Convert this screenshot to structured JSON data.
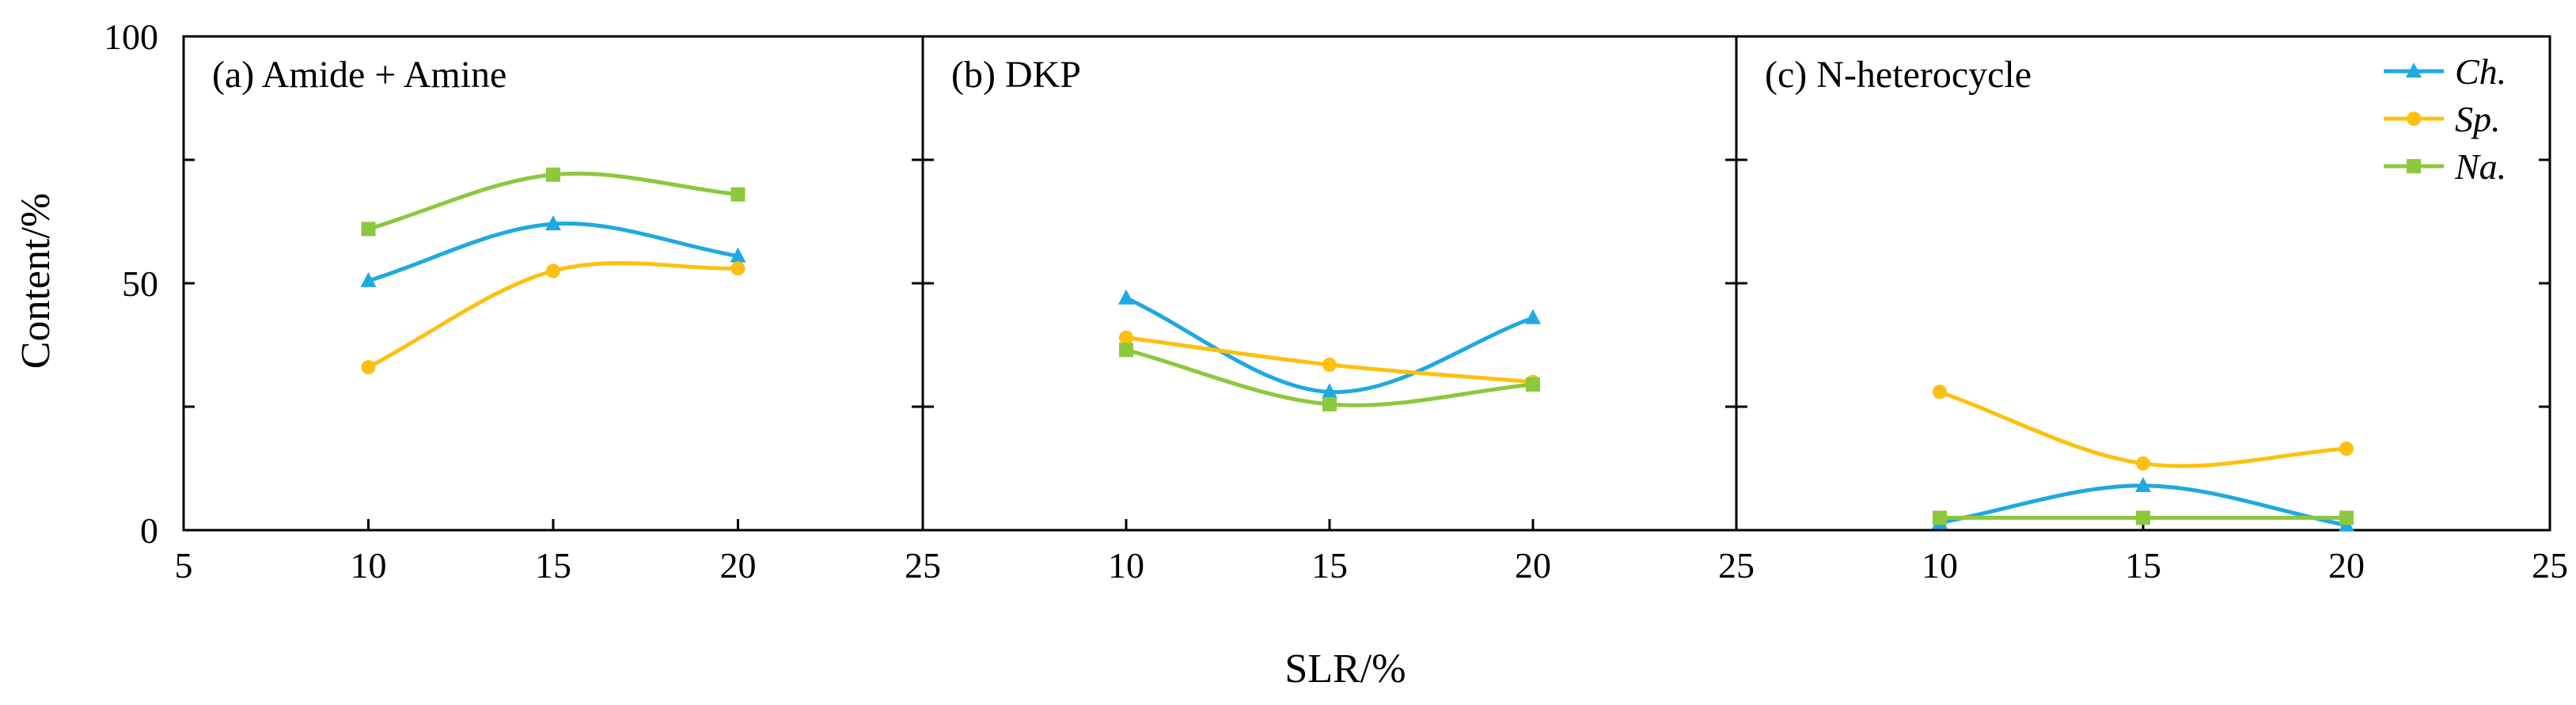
{
  "chart_data": {
    "type": "line",
    "ylabel": "Content/%",
    "xlabel": "SLR/%",
    "ylim": [
      0,
      100
    ],
    "yticks": [
      0,
      50,
      100
    ],
    "ytick_labels": [
      "0",
      "50",
      "100"
    ],
    "x_tick_labels": [
      "5",
      "10",
      "15",
      "20",
      "25",
      "10",
      "15",
      "20",
      "25",
      "10",
      "15",
      "20",
      "25"
    ],
    "colors": {
      "Ch.": "#1EA9E1",
      "Sp.": "#FDC010",
      "Na.": "#8CC83C"
    },
    "legend": [
      {
        "name": "Ch.",
        "marker": "triangle"
      },
      {
        "name": "Sp.",
        "marker": "circle"
      },
      {
        "name": "Na.",
        "marker": "square"
      }
    ],
    "panels": [
      {
        "title": "(a) Amide + Amine",
        "xlim": [
          5,
          25
        ],
        "x": [
          10,
          15,
          20
        ],
        "series": [
          {
            "name": "Ch.",
            "values": [
              50.5,
              62,
              55.5
            ]
          },
          {
            "name": "Sp.",
            "values": [
              33,
              52.5,
              53
            ]
          },
          {
            "name": "Na.",
            "values": [
              61,
              72,
              68
            ]
          }
        ]
      },
      {
        "title": "(b) DKP",
        "xlim": [
          5,
          25
        ],
        "x": [
          10,
          15,
          20
        ],
        "series": [
          {
            "name": "Ch.",
            "values": [
              47,
              28,
              43
            ]
          },
          {
            "name": "Sp.",
            "values": [
              39,
              33.5,
              30
            ]
          },
          {
            "name": "Na.",
            "values": [
              36.5,
              25.5,
              29.5
            ]
          }
        ]
      },
      {
        "title": "(c) N-heterocycle",
        "xlim": [
          5,
          25
        ],
        "x": [
          10,
          15,
          20
        ],
        "series": [
          {
            "name": "Ch.",
            "values": [
              1.5,
              9,
              1
            ]
          },
          {
            "name": "Sp.",
            "values": [
              28,
              13.5,
              16.5
            ]
          },
          {
            "name": "Na.",
            "values": [
              2.5,
              2.5,
              2.5
            ]
          }
        ]
      }
    ]
  }
}
